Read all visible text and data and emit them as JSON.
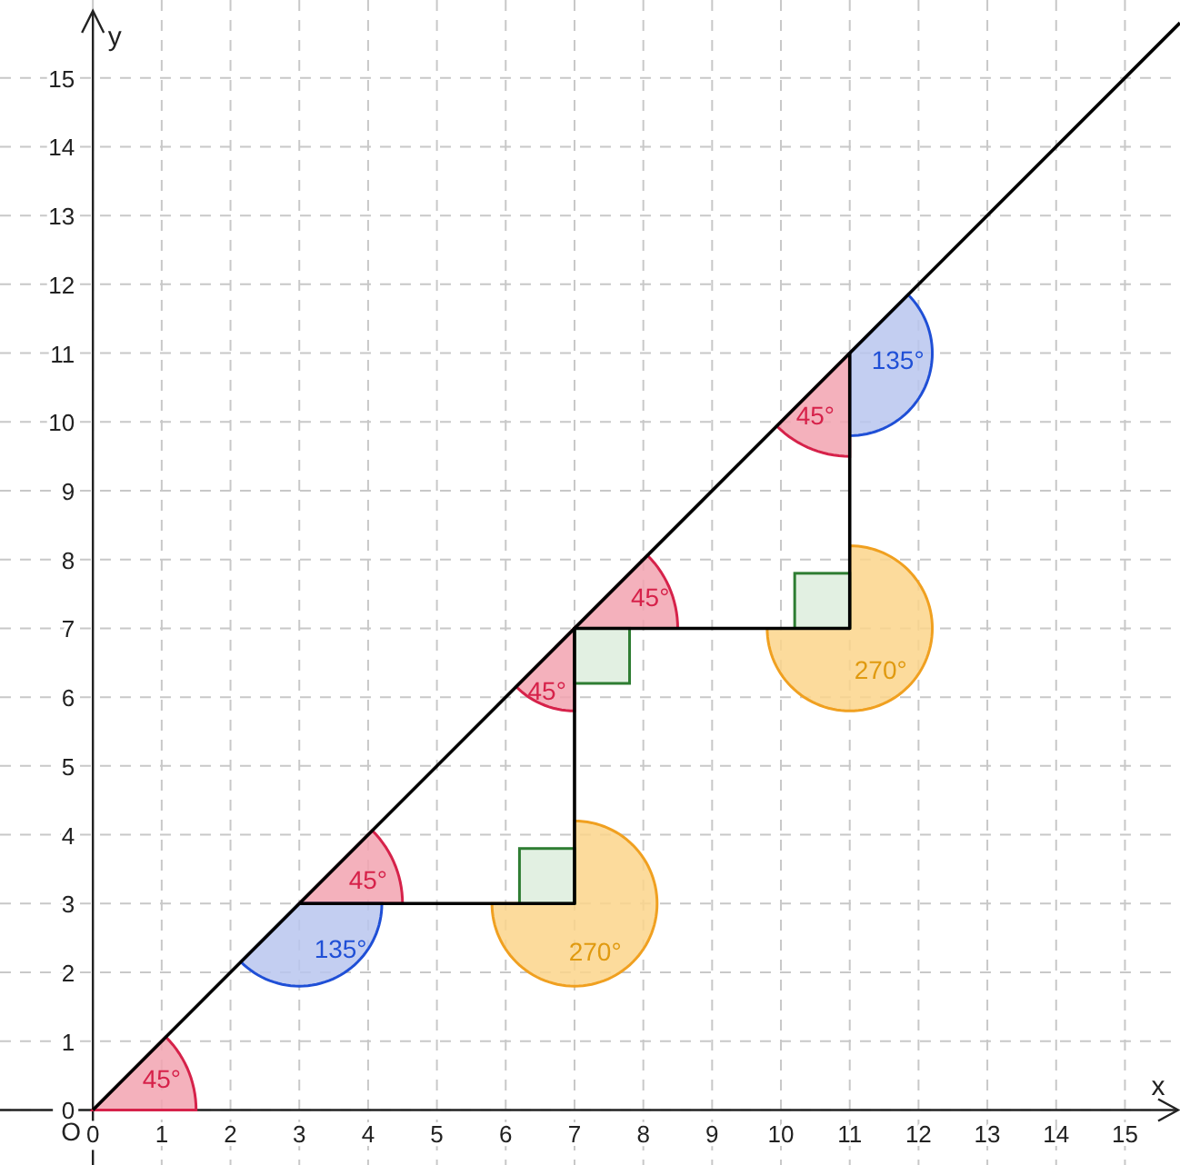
{
  "chart_data": {
    "type": "line",
    "xlabel": "x",
    "ylabel": "y",
    "xlim": [
      -1.35,
      15.8
    ],
    "ylim": [
      -0.8,
      16
    ],
    "xticks": [
      0,
      1,
      2,
      3,
      4,
      5,
      6,
      7,
      8,
      9,
      10,
      11,
      12,
      13,
      14,
      15
    ],
    "yticks": [
      0,
      1,
      2,
      3,
      4,
      5,
      6,
      7,
      8,
      9,
      10,
      11,
      12,
      13,
      14,
      15
    ],
    "grid": true,
    "marker": "none",
    "line_style": "solid",
    "series": [
      {
        "color": "#000000",
        "x": [
          0,
          15.8
        ],
        "values": [
          0,
          15.8
        ]
      },
      {
        "color": "#000000",
        "x": [
          3,
          7,
          7,
          11,
          11
        ],
        "values": [
          3,
          3,
          7,
          7,
          11
        ]
      }
    ],
    "annotations": [
      "45°",
      "45°",
      "135°",
      "270°",
      "45°",
      "45°",
      "270°",
      "45°",
      "135°",
      "O"
    ]
  }
}
